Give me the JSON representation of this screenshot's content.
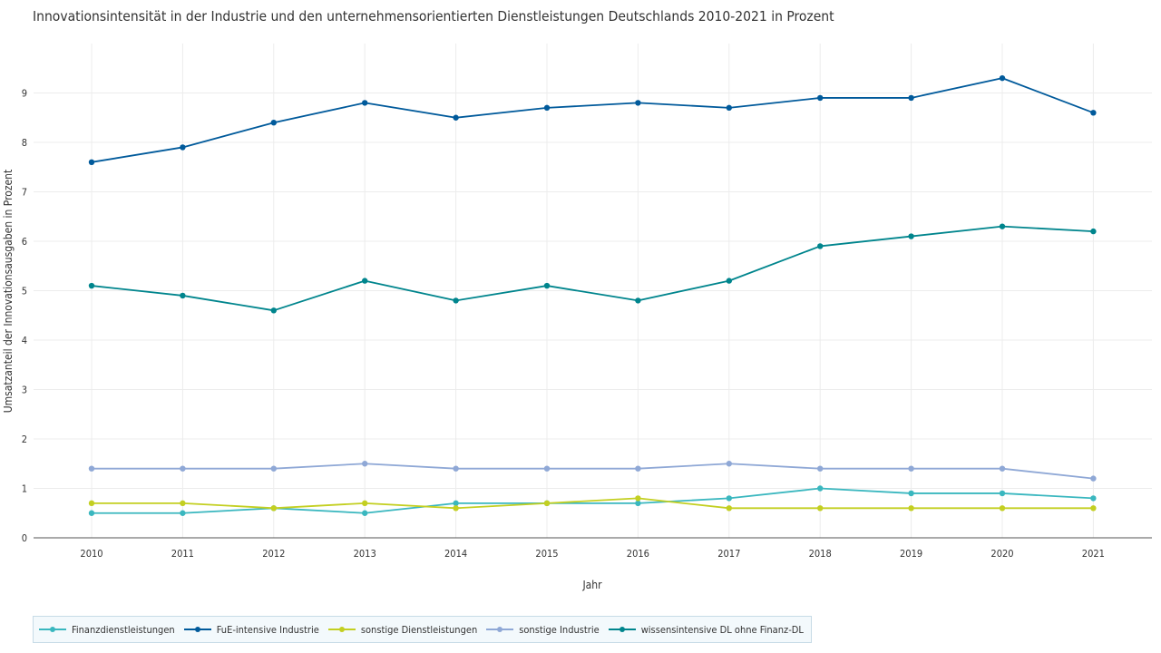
{
  "chart_data": {
    "type": "line",
    "title": "Innovationsintensität in der Industrie und den unternehmensorientierten Dienstleistungen Deutschlands 2010-2021 in Prozent",
    "xlabel": "Jahr",
    "ylabel": "Umsatzanteil der Innovationsausgaben in Prozent",
    "x": [
      "2010",
      "2011",
      "2012",
      "2013",
      "2014",
      "2015",
      "2016",
      "2017",
      "2018",
      "2019",
      "2020",
      "2021"
    ],
    "ylim": [
      0,
      10
    ],
    "yticks": [
      "0",
      "1",
      "2",
      "3",
      "4",
      "5",
      "6",
      "7",
      "8",
      "9"
    ],
    "grid": true,
    "legend_position": "bottom-left",
    "series": [
      {
        "name": "Finanzdienstleistungen",
        "color": "#3ab7bf",
        "values": [
          0.5,
          0.5,
          0.6,
          0.5,
          0.7,
          0.7,
          0.7,
          0.8,
          1.0,
          0.9,
          0.9,
          0.8
        ]
      },
      {
        "name": "FuE-intensive Industrie",
        "color": "#005a9b",
        "values": [
          7.6,
          7.9,
          8.4,
          8.8,
          8.5,
          8.7,
          8.8,
          8.7,
          8.9,
          8.9,
          9.3,
          8.6
        ]
      },
      {
        "name": "sonstige Dienstleistungen",
        "color": "#c3cf21",
        "values": [
          0.7,
          0.7,
          0.6,
          0.7,
          0.6,
          0.7,
          0.8,
          0.6,
          0.6,
          0.6,
          0.6,
          0.6
        ]
      },
      {
        "name": "sonstige Industrie",
        "color": "#8fa8d6",
        "values": [
          1.4,
          1.4,
          1.4,
          1.5,
          1.4,
          1.4,
          1.4,
          1.5,
          1.4,
          1.4,
          1.4,
          1.2
        ]
      },
      {
        "name": "wissensintensive DL ohne Finanz-DL",
        "color": "#00858d",
        "values": [
          5.1,
          4.9,
          4.6,
          5.2,
          4.8,
          5.1,
          4.8,
          5.2,
          5.9,
          6.1,
          6.3,
          6.2
        ]
      }
    ]
  }
}
